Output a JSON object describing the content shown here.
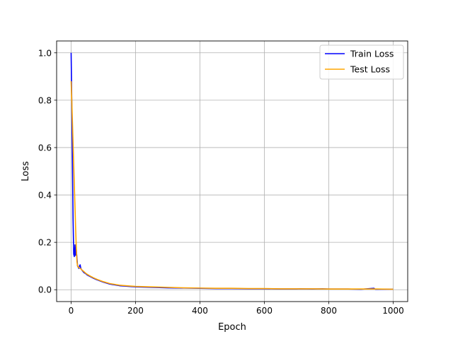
{
  "chart_data": {
    "type": "line",
    "title": "",
    "xlabel": "Epoch",
    "ylabel": "Loss",
    "xlim": [
      -45,
      1045
    ],
    "ylim": [
      -0.05,
      1.05
    ],
    "xticks": [
      0,
      200,
      400,
      600,
      800,
      1000
    ],
    "yticks": [
      0.0,
      0.2,
      0.4,
      0.6,
      0.8,
      1.0
    ],
    "xtick_labels": [
      "0",
      "200",
      "400",
      "600",
      "800",
      "1000"
    ],
    "ytick_labels": [
      "0.0",
      "0.2",
      "0.4",
      "0.6",
      "0.8",
      "1.0"
    ],
    "grid": true,
    "legend_position": "top-right",
    "series": [
      {
        "name": "Train Loss",
        "color": "#0000ff",
        "x": [
          0,
          2,
          4,
          6,
          8,
          10,
          12,
          14,
          16,
          18,
          20,
          22,
          24,
          26,
          28,
          30,
          35,
          40,
          45,
          50,
          60,
          70,
          80,
          100,
          120,
          150,
          170,
          200,
          250,
          300,
          350,
          400,
          450,
          500,
          550,
          600,
          650,
          700,
          710,
          750,
          780,
          800,
          860,
          900,
          940,
          945,
          1000
        ],
        "y": [
          1.0,
          0.8,
          0.55,
          0.3,
          0.15,
          0.14,
          0.19,
          0.145,
          0.17,
          0.135,
          0.1,
          0.095,
          0.09,
          0.1,
          0.105,
          0.09,
          0.08,
          0.072,
          0.068,
          0.062,
          0.055,
          0.048,
          0.042,
          0.032,
          0.024,
          0.017,
          0.015,
          0.012,
          0.01,
          0.008,
          0.007,
          0.006,
          0.005,
          0.005,
          0.004,
          0.004,
          0.003,
          0.003,
          0.004,
          0.003,
          0.004,
          0.003,
          0.003,
          0.002,
          0.006,
          0.002,
          0.002
        ]
      },
      {
        "name": "Test Loss",
        "color": "#ffa500",
        "x": [
          0,
          2,
          4,
          6,
          8,
          10,
          12,
          14,
          16,
          18,
          20,
          22,
          24,
          26,
          28,
          30,
          35,
          40,
          45,
          50,
          60,
          70,
          80,
          100,
          120,
          150,
          170,
          200,
          250,
          300,
          350,
          400,
          450,
          500,
          550,
          600,
          650,
          700,
          750,
          800,
          850,
          900,
          950,
          1000
        ],
        "y": [
          0.88,
          0.8,
          0.71,
          0.62,
          0.53,
          0.44,
          0.35,
          0.26,
          0.18,
          0.12,
          0.1,
          0.095,
          0.095,
          0.092,
          0.09,
          0.088,
          0.082,
          0.076,
          0.07,
          0.065,
          0.057,
          0.05,
          0.044,
          0.034,
          0.026,
          0.019,
          0.017,
          0.014,
          0.012,
          0.01,
          0.008,
          0.007,
          0.006,
          0.006,
          0.005,
          0.005,
          0.004,
          0.004,
          0.004,
          0.003,
          0.003,
          0.003,
          0.003,
          0.002
        ]
      }
    ]
  }
}
